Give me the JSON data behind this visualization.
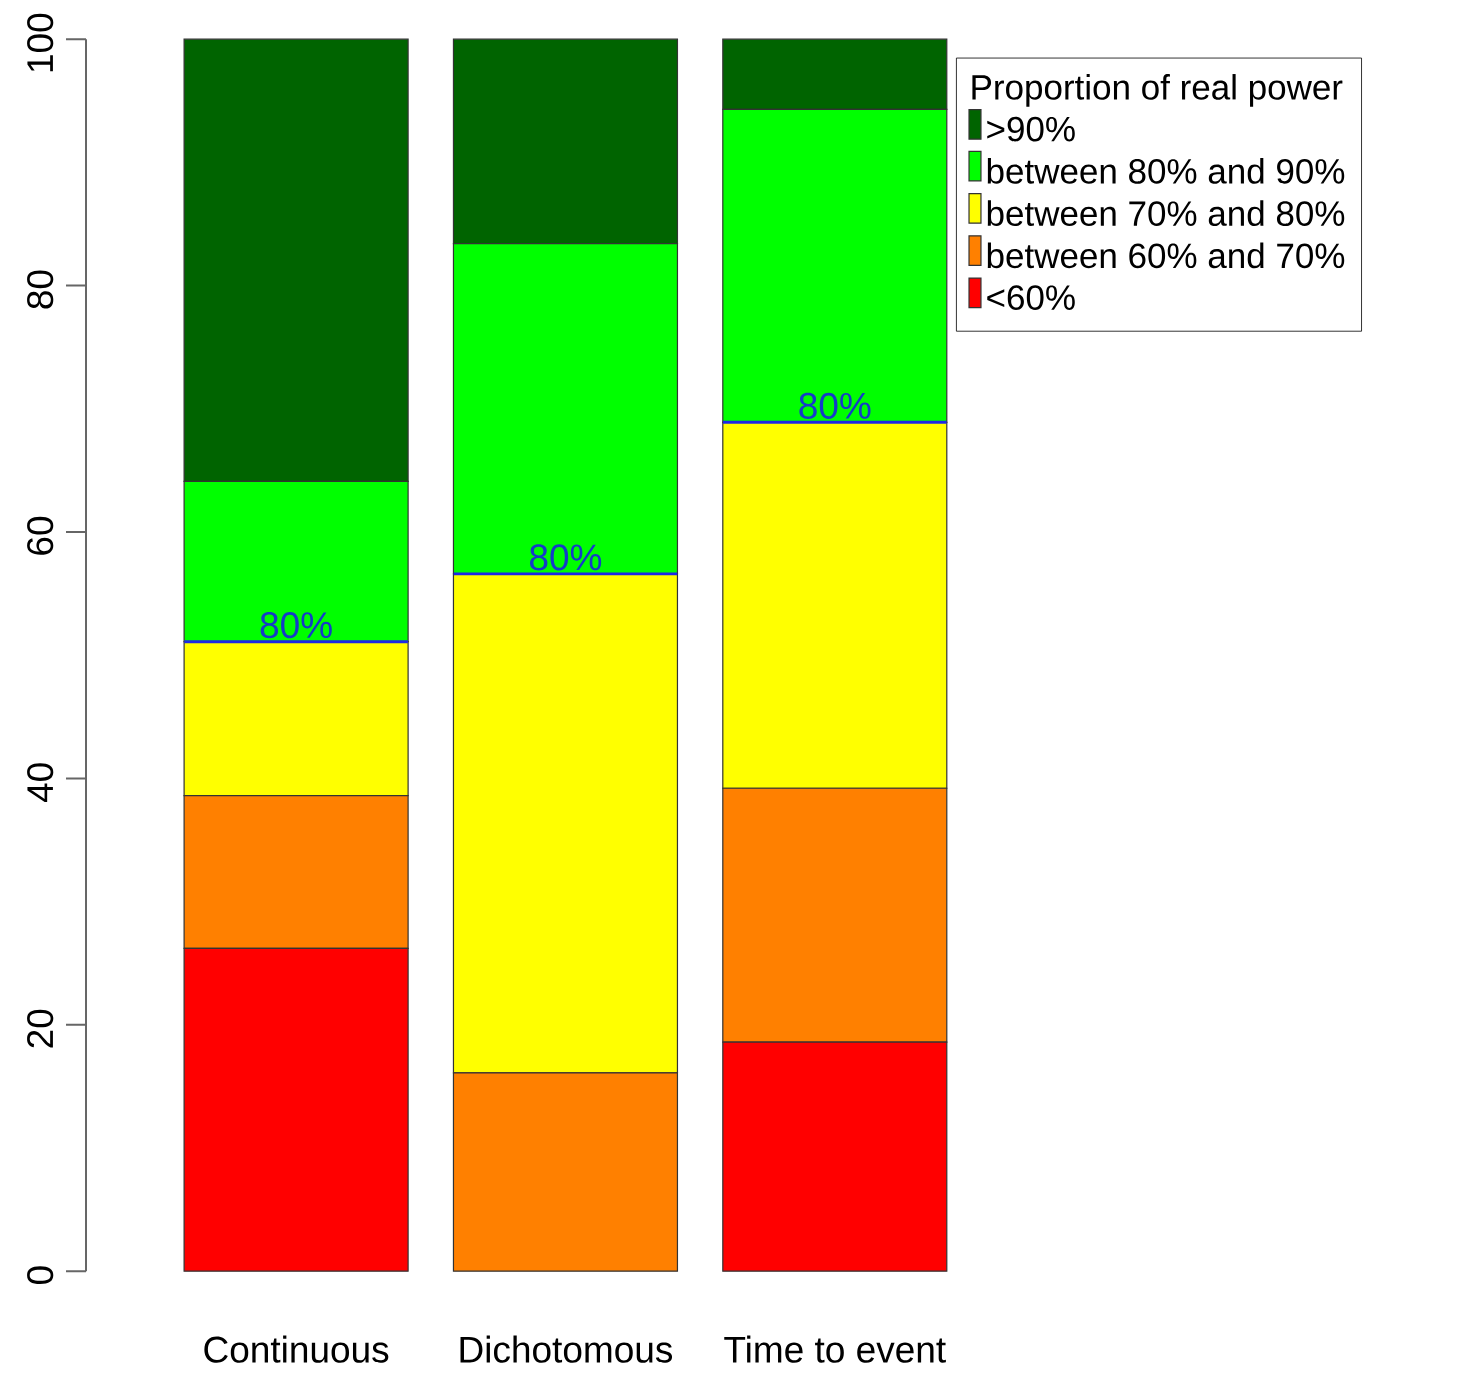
{
  "chart_data": {
    "type": "bar",
    "stacked": true,
    "categories": [
      "Continuous",
      "Dichotomous",
      "Time to event"
    ],
    "legend_title": "Proportion of real power",
    "series": [
      {
        "name": "<60%",
        "color": "#ff0000",
        "values": [
          26.2,
          0,
          18.6
        ]
      },
      {
        "name": "between 60% and 70%",
        "color": "#ff8000",
        "values": [
          12.4,
          16.1,
          20.6
        ]
      },
      {
        "name": "between 70% and 80%",
        "color": "#ffff00",
        "values": [
          12.5,
          40.5,
          29.7
        ]
      },
      {
        "name": "between 80% and 90%",
        "color": "#00ff00",
        "values": [
          13.0,
          26.8,
          25.4
        ]
      },
      {
        "name": ">90%",
        "color": "#006400",
        "values": [
          35.9,
          16.6,
          5.7
        ]
      }
    ],
    "ylim": [
      0,
      100
    ],
    "yticks": [
      0,
      20,
      40,
      60,
      80,
      100
    ],
    "legend": "top right",
    "annotations": [
      {
        "text": "80%",
        "x": "Continuous",
        "y": 51.1
      },
      {
        "text": "80%",
        "x": "Dichotomous",
        "y": 56.6
      },
      {
        "text": "80%",
        "x": "Time to event",
        "y": 68.9
      }
    ]
  }
}
